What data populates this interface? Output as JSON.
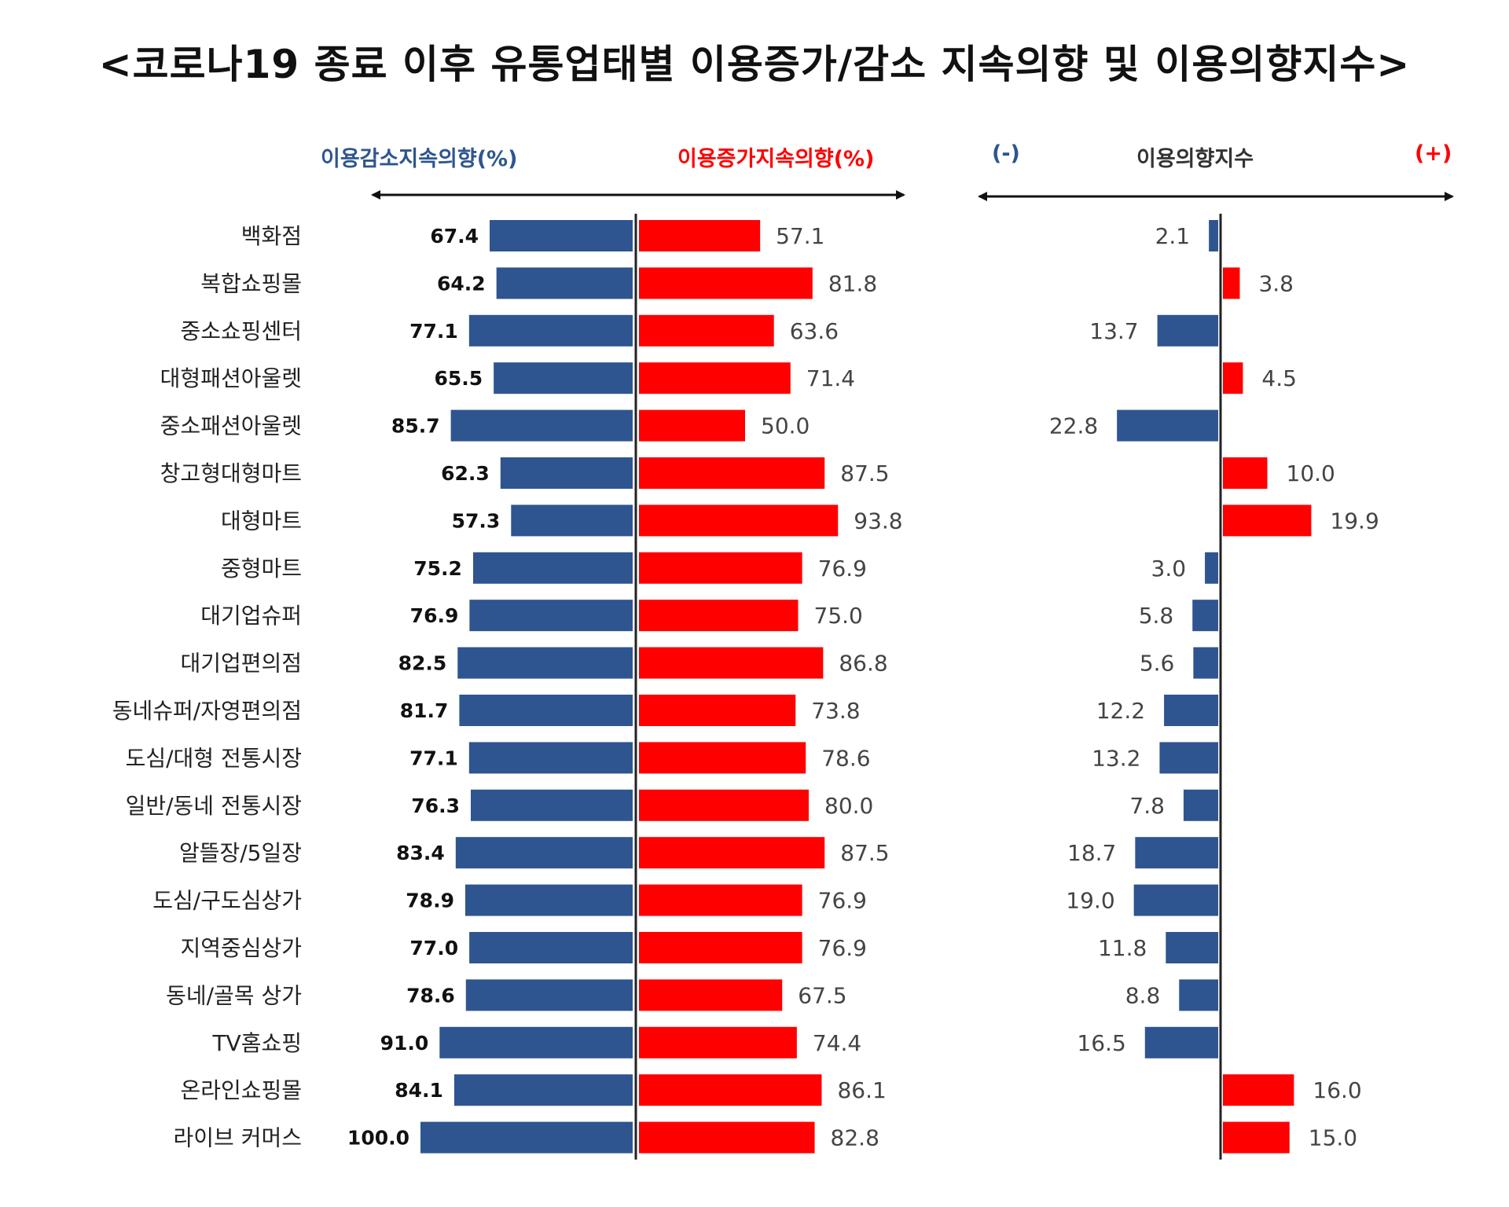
{
  "colors": {
    "decrease": "#2E5590",
    "increase": "#FF0000",
    "text": "#222222"
  },
  "headers": {
    "decrease_label": "이용감소지속의향(%)",
    "increase_label": "이용증가지속의향(%)",
    "minus_label": "(-)",
    "index_label": "이용의향지수",
    "plus_label": "(+)"
  },
  "chart_data": {
    "type": "bar",
    "title": "<코로나19 종료 이후 유통업태별 이용증가/감소 지속의향 및 이용의향지수>",
    "categories": [
      "백화점",
      "복합쇼핑몰",
      "중소쇼핑센터",
      "대형패션아울렛",
      "중소패션아울렛",
      "창고형대형마트",
      "대형마트",
      "중형마트",
      "대기업슈퍼",
      "대기업편의점",
      "동네슈퍼/자영편의점",
      "도심/대형 전통시장",
      "일반/동네 전통시장",
      "알뜰장/5일장",
      "도심/구도심상가",
      "지역중심상가",
      "동네/골목 상가",
      "TV홈쇼핑",
      "온라인쇼핑몰",
      "라이브 커머스"
    ],
    "series": [
      {
        "name": "이용감소지속의향(%)",
        "values": [
          67.4,
          64.2,
          77.1,
          65.5,
          85.7,
          62.3,
          57.3,
          75.2,
          76.9,
          82.5,
          81.7,
          77.1,
          76.3,
          83.4,
          78.9,
          77.0,
          78.6,
          91.0,
          84.1,
          100.0
        ],
        "labels": [
          "67.4",
          "64.2",
          "77.1",
          "65.5",
          "85.7",
          "62.3",
          "57.3",
          "75.2",
          "76.9",
          "82.5",
          "81.7",
          "77.1",
          "76.3",
          "83.4",
          "78.9",
          "77.0",
          "78.6",
          "91.0",
          "84.1",
          "100.0"
        ]
      },
      {
        "name": "이용증가지속의향(%)",
        "values": [
          57.1,
          81.8,
          63.6,
          71.4,
          50.0,
          87.5,
          93.8,
          76.9,
          75.0,
          86.8,
          73.8,
          78.6,
          80.0,
          87.5,
          76.9,
          76.9,
          67.5,
          74.4,
          86.1,
          82.8
        ],
        "labels": [
          "57.1",
          "81.8",
          "63.6",
          "71.4",
          "50.0",
          "87.5",
          "93.8",
          "76.9",
          "75.0",
          "86.8",
          "73.8",
          "78.6",
          "80.0",
          "87.5",
          "76.9",
          "76.9",
          "67.5",
          "74.4",
          "86.1",
          "82.8"
        ]
      },
      {
        "name": "이용의향지수",
        "values": [
          -2.1,
          3.8,
          -13.7,
          4.5,
          -22.8,
          10.0,
          19.9,
          -3.0,
          -5.8,
          -5.6,
          -12.2,
          -13.2,
          -7.8,
          -18.7,
          -19.0,
          -11.8,
          -8.8,
          -16.5,
          16.0,
          15.0
        ],
        "labels": [
          "2.1",
          "3.8",
          "13.7",
          "4.5",
          "22.8",
          "10.0",
          "19.9",
          "3.0",
          "5.8",
          "5.6",
          "12.2",
          "13.2",
          "7.8",
          "18.7",
          "19.0",
          "11.8",
          "8.8",
          "16.5",
          "16.0",
          "15.0"
        ]
      }
    ],
    "legend": "top",
    "grid": false
  }
}
